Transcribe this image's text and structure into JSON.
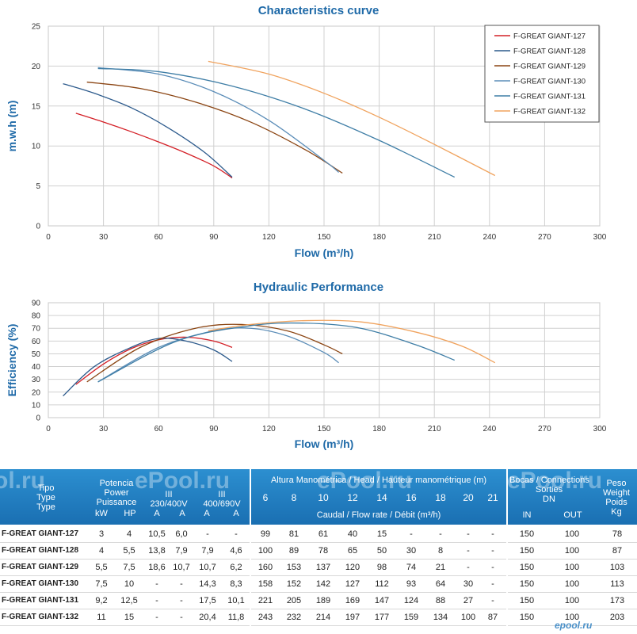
{
  "chart_data": [
    {
      "type": "line",
      "title": "Characteristics curve",
      "xlabel": "Flow (m³/h)",
      "ylabel": "m.w.h (m)",
      "xlim": [
        0,
        300
      ],
      "ylim": [
        0,
        25
      ],
      "xticks": [
        0,
        30,
        60,
        90,
        120,
        150,
        180,
        210,
        240,
        270,
        300
      ],
      "yticks": [
        0,
        5,
        10,
        15,
        20,
        25
      ],
      "grid": true,
      "legend": "top-right",
      "series": [
        {
          "name": "F-GREAT  GIANT-127",
          "color": "#d42027",
          "x": [
            15,
            30,
            45,
            60,
            75,
            90,
            100
          ],
          "y": [
            14.1,
            13.0,
            11.8,
            10.5,
            9.1,
            7.5,
            6.0
          ]
        },
        {
          "name": "F-GREAT  GIANT-128",
          "color": "#2c5a8c",
          "x": [
            8,
            25,
            45,
            65,
            85,
            100
          ],
          "y": [
            17.8,
            16.6,
            14.8,
            12.3,
            9.2,
            6.1
          ]
        },
        {
          "name": "F-GREAT  GIANT-129",
          "color": "#8b4513",
          "x": [
            21,
            50,
            80,
            110,
            140,
            160
          ],
          "y": [
            18.0,
            17.2,
            15.5,
            13.0,
            9.5,
            6.6
          ]
        },
        {
          "name": "F-GREAT  GIANT-130",
          "color": "#5b8db8",
          "x": [
            27,
            60,
            90,
            120,
            150,
            158
          ],
          "y": [
            19.8,
            19.0,
            16.8,
            13.2,
            8.2,
            6.7
          ]
        },
        {
          "name": "F-GREAT  GIANT-131",
          "color": "#3f7ea6",
          "x": [
            27,
            60,
            100,
            140,
            180,
            221
          ],
          "y": [
            19.7,
            19.3,
            17.5,
            14.6,
            10.7,
            6.1
          ]
        },
        {
          "name": "F-GREAT  GIANT-132",
          "color": "#f0a35e",
          "x": [
            87,
            120,
            150,
            180,
            210,
            243
          ],
          "y": [
            20.6,
            19.0,
            16.6,
            13.6,
            10.2,
            6.3
          ]
        }
      ]
    },
    {
      "type": "line",
      "title": "Hydraulic Performance",
      "xlabel": "Flow (m³/h)",
      "ylabel": "Efficiency (%)",
      "xlim": [
        0,
        300
      ],
      "ylim": [
        0,
        90
      ],
      "xticks": [
        0,
        30,
        60,
        90,
        120,
        150,
        180,
        210,
        240,
        270,
        300
      ],
      "yticks": [
        0,
        10,
        20,
        30,
        40,
        50,
        60,
        70,
        80,
        90
      ],
      "grid": true,
      "series": [
        {
          "color": "#d42027",
          "x": [
            15,
            30,
            45,
            60,
            75,
            90,
            100
          ],
          "y": [
            26,
            42,
            54,
            61,
            63,
            60,
            55
          ]
        },
        {
          "color": "#2c5a8c",
          "x": [
            8,
            25,
            45,
            60,
            75,
            90,
            100
          ],
          "y": [
            17,
            40,
            55,
            62,
            60,
            53,
            44
          ]
        },
        {
          "color": "#8b4513",
          "x": [
            21,
            50,
            80,
            105,
            130,
            150,
            160
          ],
          "y": [
            28,
            55,
            70,
            73,
            68,
            57,
            50
          ]
        },
        {
          "color": "#5b8db8",
          "x": [
            27,
            60,
            90,
            110,
            130,
            150,
            158
          ],
          "y": [
            28,
            55,
            68,
            70,
            64,
            51,
            43
          ]
        },
        {
          "color": "#3f7ea6",
          "x": [
            27,
            70,
            110,
            140,
            170,
            200,
            221
          ],
          "y": [
            28,
            60,
            72,
            74,
            70,
            57,
            45
          ]
        },
        {
          "color": "#f0a35e",
          "x": [
            87,
            110,
            140,
            170,
            200,
            225,
            243
          ],
          "y": [
            68,
            73,
            76,
            75,
            67,
            56,
            43
          ]
        }
      ]
    }
  ],
  "table": {
    "headers": {
      "tipo": [
        "Tipo",
        "Type",
        "Type"
      ],
      "potencia": [
        "Potencia",
        "Power",
        "Puissance"
      ],
      "kw": "kW",
      "hp": "HP",
      "v230": [
        "III",
        "230/400V"
      ],
      "v400": [
        "III",
        "400/690V"
      ],
      "a": "A",
      "altura": "Altura Manométrica / Head / Hauteur manométrique (m)",
      "flows": [
        "6",
        "8",
        "10",
        "12",
        "14",
        "16",
        "18",
        "20",
        "21"
      ],
      "caudal": "Caudal / Flow rate / Débit (m³/h)",
      "bocas": [
        "Bocas / Connections",
        "Sorties",
        "DN"
      ],
      "in": "IN",
      "out": "OUT",
      "peso": [
        "Peso",
        "Weight",
        "Poids",
        "Kg"
      ]
    },
    "rows": [
      {
        "name": "F-GREAT GIANT-127",
        "kw": "3",
        "hp": "4",
        "a1": "10,5",
        "a2": "6,0",
        "a3": "-",
        "a4": "-",
        "flows": [
          "99",
          "81",
          "61",
          "40",
          "15",
          "-",
          "-",
          "-",
          "-"
        ],
        "in": "150",
        "out": "100",
        "kg": "78"
      },
      {
        "name": "F-GREAT GIANT-128",
        "kw": "4",
        "hp": "5,5",
        "a1": "13,8",
        "a2": "7,9",
        "a3": "7,9",
        "a4": "4,6",
        "flows": [
          "100",
          "89",
          "78",
          "65",
          "50",
          "30",
          "8",
          "-",
          "-"
        ],
        "in": "150",
        "out": "100",
        "kg": "87"
      },
      {
        "name": "F-GREAT GIANT-129",
        "kw": "5,5",
        "hp": "7,5",
        "a1": "18,6",
        "a2": "10,7",
        "a3": "10,7",
        "a4": "6,2",
        "flows": [
          "160",
          "153",
          "137",
          "120",
          "98",
          "74",
          "21",
          "-",
          "-"
        ],
        "in": "150",
        "out": "100",
        "kg": "103"
      },
      {
        "name": "F-GREAT GIANT-130",
        "kw": "7,5",
        "hp": "10",
        "a1": "-",
        "a2": "-",
        "a3": "14,3",
        "a4": "8,3",
        "flows": [
          "158",
          "152",
          "142",
          "127",
          "112",
          "93",
          "64",
          "30",
          "-"
        ],
        "in": "150",
        "out": "100",
        "kg": "113"
      },
      {
        "name": "F-GREAT GIANT-131",
        "kw": "9,2",
        "hp": "12,5",
        "a1": "-",
        "a2": "-",
        "a3": "17,5",
        "a4": "10,1",
        "flows": [
          "221",
          "205",
          "189",
          "169",
          "147",
          "124",
          "88",
          "27",
          "-"
        ],
        "in": "150",
        "out": "100",
        "kg": "173"
      },
      {
        "name": "F-GREAT GIANT-132",
        "kw": "11",
        "hp": "15",
        "a1": "-",
        "a2": "-",
        "a3": "20,4",
        "a4": "11,8",
        "flows": [
          "243",
          "232",
          "214",
          "197",
          "177",
          "159",
          "134",
          "100",
          "87"
        ],
        "in": "150",
        "out": "100",
        "kg": "203"
      }
    ]
  },
  "watermarks": {
    "brand": "ePool.ru",
    "partial": "ol.ru",
    "footer": "epool.ru"
  }
}
